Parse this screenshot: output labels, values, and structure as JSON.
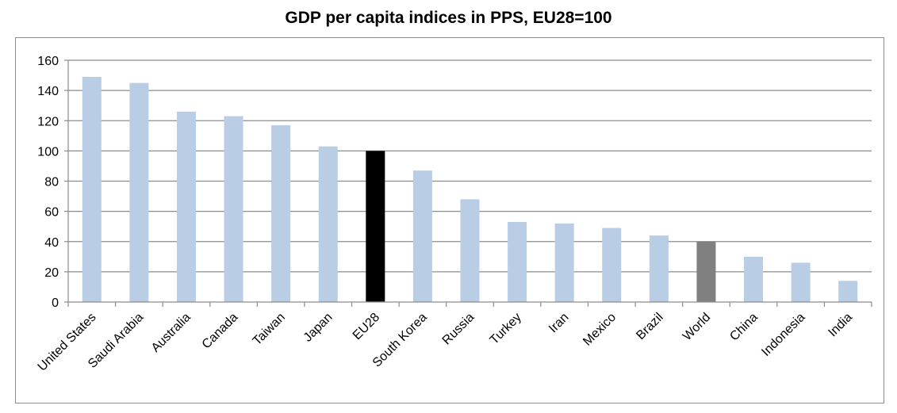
{
  "chart_data": {
    "type": "bar",
    "title": "GDP per capita indices in PPS, EU28=100",
    "xlabel": "",
    "ylabel": "",
    "ylim": [
      0,
      160
    ],
    "yticks": [
      0,
      20,
      40,
      60,
      80,
      100,
      120,
      140,
      160
    ],
    "grid": true,
    "legend": "none",
    "categories": [
      "United States",
      "Saudi Arabia",
      "Australia",
      "Canada",
      "Taiwan",
      "Japan",
      "EU28",
      "South Korea",
      "Russia",
      "Turkey",
      "Iran",
      "Mexico",
      "Brazil",
      "World",
      "China",
      "Indonesia",
      "India"
    ],
    "values": [
      149,
      145,
      126,
      123,
      117,
      103,
      100,
      87,
      68,
      53,
      52,
      49,
      44,
      40,
      30,
      26,
      14
    ],
    "colors": {
      "default": "#b9cde5",
      "EU28": "#000000",
      "World": "#808080",
      "grid": "#8c8c8c",
      "axis": "#8c8c8c"
    }
  }
}
